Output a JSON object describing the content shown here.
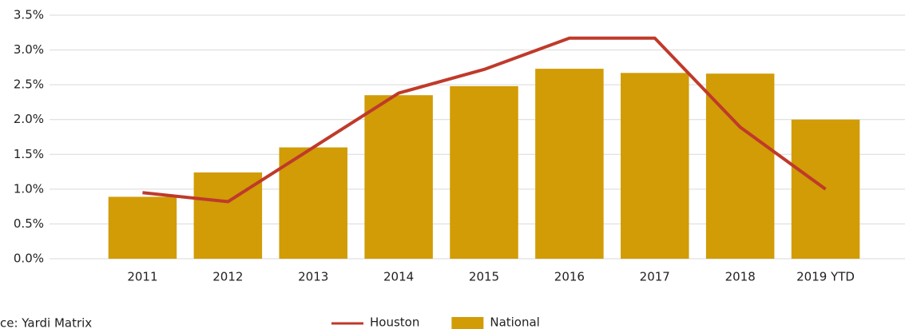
{
  "chart_data": {
    "type": "bar",
    "categories": [
      "2011",
      "2012",
      "2013",
      "2014",
      "2015",
      "2016",
      "2017",
      "2018",
      "2019 YTD"
    ],
    "series": [
      {
        "name": "National",
        "type": "bar",
        "color": "#d19c06",
        "values": [
          0.89,
          1.24,
          1.6,
          2.35,
          2.48,
          2.73,
          2.67,
          2.66,
          2.0
        ]
      },
      {
        "name": "Houston",
        "type": "line",
        "color": "#bf3a2b",
        "values": [
          0.95,
          0.82,
          1.6,
          2.38,
          2.72,
          3.17,
          3.17,
          1.89,
          1.0
        ]
      }
    ],
    "ylim": [
      0,
      3.5
    ],
    "yticks": [
      {
        "value": 0,
        "label": "0.0%"
      },
      {
        "value": 0.5,
        "label": "0.5%"
      },
      {
        "value": 1,
        "label": "1.0%"
      },
      {
        "value": 1.5,
        "label": "1.5%"
      },
      {
        "value": 2,
        "label": "2.0%"
      },
      {
        "value": 2.5,
        "label": "2.5%"
      },
      {
        "value": 3,
        "label": "3.0%"
      },
      {
        "value": 3.5,
        "label": "3.5%"
      }
    ],
    "grid": true,
    "source": "ce: Yardi Matrix"
  }
}
